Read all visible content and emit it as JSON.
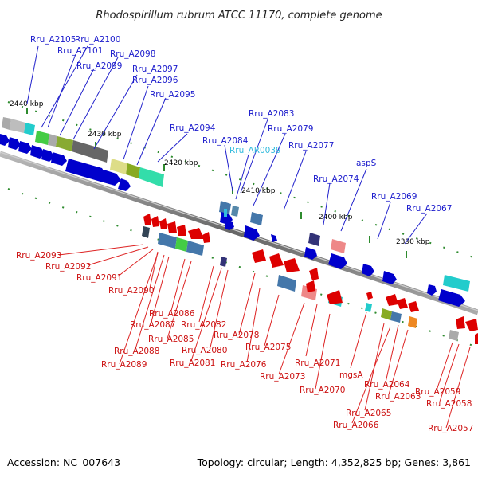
{
  "header": {
    "title": "Rhodospirillum rubrum ATCC 11170, complete genome"
  },
  "footer": {
    "accession": "Accession: NC_007643",
    "topology": "Topology: circular; Length: 4,352,825 bp; Genes: 3,861"
  },
  "scale_labels": [
    "2440 kbp",
    "2430 kbp",
    "2420 kbp",
    "2410 kbp",
    "2400 kbp",
    "2390 kbp"
  ],
  "forward_genes": [
    "Rru_A2105",
    "Rru_A2100",
    "Rru_A2101",
    "Rru_A2099",
    "Rru_A2098",
    "Rru_A2097",
    "Rru_A2096",
    "Rru_A2095",
    "Rru_A2094",
    "Rru_A2084",
    "Rru_AR0039",
    "Rru_A2083",
    "Rru_A2079",
    "Rru_A2077",
    "Rru_A2074",
    "aspS",
    "Rru_A2069",
    "Rru_A2067"
  ],
  "reverse_genes": [
    "Rru_A2093",
    "Rru_A2092",
    "Rru_A2091",
    "Rru_A2090",
    "Rru_A2086",
    "Rru_A2087",
    "Rru_A2082",
    "Rru_A2085",
    "Rru_A2078",
    "Rru_A2088",
    "Rru_A2080",
    "Rru_A2075",
    "Rru_A2089",
    "Rru_A2081",
    "Rru_A2076",
    "Rru_A2071",
    "Rru_A2073",
    "mgsA",
    "Rru_A2070",
    "Rru_A2064",
    "Rru_A2063",
    "Rru_A2065",
    "Rru_A2066",
    "Rru_A2059",
    "Rru_A2058",
    "Rru_A2057"
  ],
  "colors": {
    "forward": "#0000c8",
    "reverse": "#cc0000",
    "rna": "#33bbdd",
    "backbone": "#888888",
    "tick": "#2e8b2e"
  }
}
